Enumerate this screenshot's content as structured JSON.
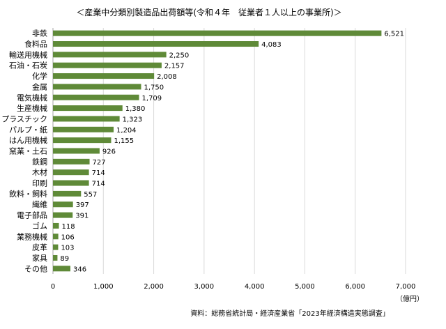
{
  "chart_data": {
    "type": "bar",
    "orientation": "horizontal",
    "title": "＜産業中分類別製造品出荷額等(令和４年　従業者１人以上の事業所)＞",
    "categories": [
      "非鉄",
      "食料品",
      "輸送用機械",
      "石油・石炭",
      "化学",
      "金属",
      "電気機械",
      "生産機械",
      "プラスチック",
      "パルプ・紙",
      "はん用機械",
      "窯業・土石",
      "鉄鋼",
      "木材",
      "印刷",
      "飲料・飼料",
      "繊維",
      "電子部品",
      "ゴム",
      "業務機械",
      "皮革",
      "家具",
      "その他"
    ],
    "values": [
      6521,
      4083,
      2250,
      2157,
      2008,
      1750,
      1709,
      1380,
      1323,
      1204,
      1155,
      926,
      727,
      714,
      714,
      557,
      397,
      391,
      118,
      106,
      103,
      89,
      346
    ],
    "value_labels": [
      "6,521",
      "4,083",
      "2,250",
      "2,157",
      "2,008",
      "1,750",
      "1,709",
      "1,380",
      "1,323",
      "1,204",
      "1,155",
      "926",
      "727",
      "714",
      "714",
      "557",
      "397",
      "391",
      "118",
      "106",
      "103",
      "89",
      "346"
    ],
    "xlim": [
      0,
      7000
    ],
    "xticks": [
      0,
      1000,
      2000,
      3000,
      4000,
      5000,
      6000,
      7000
    ],
    "xtick_labels": [
      "0",
      "1,000",
      "2,000",
      "3,000",
      "4,000",
      "5,000",
      "6,000",
      "7,000"
    ],
    "unit_label": "（億円）",
    "source": "資料：総務省統計局・経済産業省「2023年経済構造実態調査」",
    "grid": "vertical",
    "bar_color": "#5f8a38",
    "grid_color": "#d9d9d9",
    "axis_color": "#a6a6a6"
  }
}
